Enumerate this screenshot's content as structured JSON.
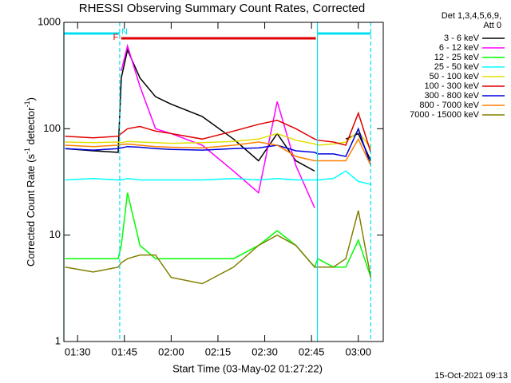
{
  "chart_data": {
    "type": "line",
    "title": "RHESSI Observing Summary Count Rates, Corrected",
    "ylabel_parts": [
      "Corrected Count Rate (s",
      "-1",
      " detector",
      "-1",
      ")"
    ],
    "xlabel": "Start Time (03-May-02 01:27:22)",
    "timestamp": "15-Oct-2021 09:13",
    "legend_header": [
      "Det 1,3,4,5,6,9,",
      "Att 0"
    ],
    "log_y": true,
    "xlim": [
      85.6,
      188
    ],
    "ylim": [
      1,
      1000
    ],
    "yticks": [
      1,
      10,
      100,
      1000
    ],
    "xticks": [
      {
        "value": 90,
        "label": "01:30"
      },
      {
        "value": 105,
        "label": "01:45"
      },
      {
        "value": 120,
        "label": "02:00"
      },
      {
        "value": 135,
        "label": "02:15"
      },
      {
        "value": 150,
        "label": "02:30"
      },
      {
        "value": 165,
        "label": "02:45"
      },
      {
        "value": 180,
        "label": "03:00"
      }
    ],
    "flare": {
      "label": "F",
      "start": 104,
      "end": 166.4,
      "color": "#e00000"
    },
    "night": {
      "label": "N",
      "color": "#00e0f0",
      "ranges": [
        [
          85.6,
          103.5
        ],
        [
          166.9,
          184
        ]
      ]
    },
    "x": [
      86,
      95,
      103,
      104,
      106,
      110,
      115,
      120,
      130,
      140,
      148,
      154,
      160,
      166,
      167,
      172,
      176,
      180,
      184
    ],
    "series": [
      {
        "name": "3 - 6 keV",
        "color": "#000000",
        "values": [
          65,
          62,
          60,
          300,
          550,
          300,
          200,
          170,
          130,
          80,
          50,
          90,
          50,
          40,
          null,
          null,
          80,
          90,
          50
        ]
      },
      {
        "name": "6 - 12 keV",
        "color": "#ff00ff",
        "values": [
          null,
          null,
          null,
          350,
          600,
          250,
          100,
          90,
          70,
          40,
          25,
          180,
          45,
          18,
          null,
          null,
          null,
          null,
          null
        ]
      },
      {
        "name": "12 - 25 keV",
        "color": "#00ff00",
        "values": [
          6,
          6,
          6,
          8,
          25,
          8,
          6,
          6,
          6,
          6,
          8,
          11,
          8,
          5,
          6,
          5,
          5,
          9,
          4
        ]
      },
      {
        "name": "25 - 50 keV",
        "color": "#00ffff",
        "values": [
          33,
          34,
          33,
          33,
          34,
          33,
          33,
          33,
          33,
          34,
          33,
          34,
          33,
          33,
          33,
          34,
          40,
          32,
          30
        ]
      },
      {
        "name": "50 - 100 keV",
        "color": "#e0e000",
        "values": [
          75,
          74,
          75,
          74,
          76,
          75,
          74,
          73,
          74,
          76,
          80,
          90,
          78,
          72,
          70,
          72,
          75,
          95,
          65
        ]
      },
      {
        "name": "100 - 300 keV",
        "color": "#e00000",
        "values": [
          85,
          82,
          85,
          90,
          100,
          105,
          95,
          90,
          80,
          95,
          110,
          120,
          100,
          80,
          78,
          75,
          70,
          140,
          60
        ]
      },
      {
        "name": "300 - 800 keV",
        "color": "#0000e0",
        "values": [
          65,
          63,
          65,
          66,
          68,
          67,
          65,
          64,
          63,
          65,
          66,
          70,
          62,
          60,
          58,
          58,
          55,
          100,
          45
        ]
      },
      {
        "name": "800 - 7000 keV",
        "color": "#ff8000",
        "values": [
          70,
          68,
          70,
          71,
          72,
          70,
          68,
          67,
          66,
          70,
          75,
          70,
          55,
          50,
          50,
          50,
          50,
          80,
          45
        ]
      },
      {
        "name": "7000 - 15000 keV",
        "color": "#808000",
        "values": [
          5,
          4.5,
          5,
          5.5,
          6,
          6.5,
          6.5,
          4,
          3.5,
          5,
          8,
          10,
          8,
          5,
          5,
          5,
          6,
          17,
          4
        ]
      }
    ]
  }
}
